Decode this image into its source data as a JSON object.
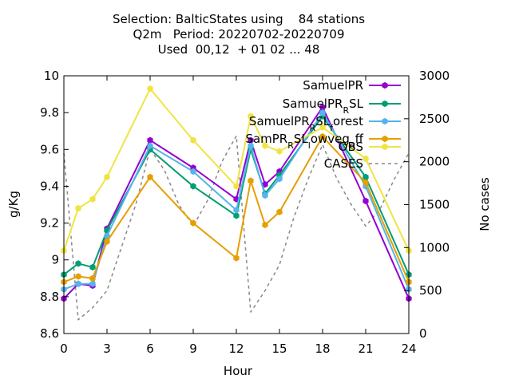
{
  "title_lines": [
    "Selection: BalticStates using    84 stations",
    "Q2m   Period: 20220702-20220709",
    "Used  00,12  + 01 02 ... 48"
  ],
  "chart_data": {
    "type": "line",
    "xlabel": "Hour",
    "ylabel": "g/Kg",
    "y2label": "No cases",
    "xlim": [
      0,
      24
    ],
    "ylim": [
      8.6,
      10.0
    ],
    "y2lim": [
      0,
      3000
    ],
    "xticks": [
      0,
      3,
      6,
      9,
      12,
      15,
      18,
      21,
      24
    ],
    "xtick_labels": [
      "0",
      "3",
      "6",
      "9",
      "12",
      "15",
      "18",
      "21",
      "24"
    ],
    "yticks": [
      8.6,
      8.8,
      9.0,
      9.2,
      9.4,
      9.6,
      9.8,
      10.0
    ],
    "ytick_labels": [
      "8.6",
      "8.8",
      "9",
      "9.2",
      "9.4",
      "9.6",
      "9.8",
      "10"
    ],
    "y2ticks": [
      0,
      500,
      1000,
      1500,
      2000,
      2500,
      3000
    ],
    "y2tick_labels": [
      "0",
      "500",
      "1000",
      "1500",
      "2000",
      "2500",
      "3000"
    ],
    "legend_position": "top-right",
    "series": [
      {
        "name": "SamuelPR",
        "color": "#9400d3",
        "x": [
          0,
          1,
          2,
          3,
          6,
          9,
          12,
          13,
          14,
          15,
          18,
          21,
          24
        ],
        "y": [
          8.79,
          8.87,
          8.86,
          9.17,
          9.65,
          9.5,
          9.33,
          9.65,
          9.41,
          9.48,
          9.83,
          9.32,
          8.79
        ]
      },
      {
        "name": "SamuelPR_R SL",
        "color": "#009e73",
        "x": [
          0,
          1,
          2,
          3,
          6,
          9,
          12,
          13,
          14,
          15,
          18,
          21,
          24
        ],
        "y": [
          8.92,
          8.98,
          8.96,
          9.16,
          9.6,
          9.4,
          9.24,
          9.6,
          9.36,
          9.46,
          9.78,
          9.45,
          8.92
        ]
      },
      {
        "name": "SamuelPR_R SL_forest",
        "color": "#56b4e9",
        "x": [
          0,
          1,
          2,
          3,
          6,
          9,
          12,
          13,
          14,
          15,
          18,
          21,
          24
        ],
        "y": [
          8.84,
          8.87,
          8.87,
          9.13,
          9.62,
          9.48,
          9.27,
          9.62,
          9.35,
          9.44,
          9.8,
          9.4,
          8.84
        ]
      },
      {
        "name": "SamPR_R SL_lowveg_off",
        "color": "#e69f00",
        "x": [
          0,
          1,
          2,
          3,
          6,
          9,
          12,
          13,
          14,
          15,
          18,
          21,
          24
        ],
        "y": [
          8.88,
          8.91,
          8.9,
          9.1,
          9.45,
          9.2,
          9.01,
          9.43,
          9.19,
          9.26,
          9.67,
          9.42,
          8.88
        ]
      },
      {
        "name": "OBS",
        "color": "#f0e442",
        "x": [
          0,
          1,
          2,
          3,
          6,
          9,
          12,
          13,
          14,
          15,
          18,
          21,
          24
        ],
        "y": [
          9.05,
          9.28,
          9.33,
          9.45,
          9.93,
          9.65,
          9.4,
          9.78,
          9.62,
          9.59,
          9.72,
          9.55,
          9.05
        ]
      },
      {
        "name": "CASES",
        "color": "#888888",
        "axis": "y2",
        "x": [
          0,
          1,
          2,
          3,
          4,
          5,
          6,
          7,
          8,
          9,
          10,
          11,
          12,
          13,
          14,
          15,
          16,
          17,
          18,
          19,
          20,
          21,
          22,
          23,
          24
        ],
        "y": [
          2100,
          160,
          300,
          500,
          1000,
          1500,
          2150,
          1900,
          1500,
          1250,
          1550,
          2000,
          2300,
          250,
          500,
          800,
          1350,
          1800,
          2200,
          1800,
          1500,
          1250,
          1450,
          1800,
          2100
        ]
      }
    ]
  },
  "legend_labels": [
    {
      "base": "SamuelPR",
      "parts": []
    },
    {
      "base": "SamuelPR",
      "parts": [
        {
          "t": "R",
          "sub": true
        },
        {
          "t": "SL",
          "sub": false
        }
      ]
    },
    {
      "base": "SamuelPR",
      "parts": [
        {
          "t": "R",
          "sub": true
        },
        {
          "t": "SL",
          "sub": false
        },
        {
          "t": "f",
          "sub": true
        },
        {
          "t": "orest",
          "sub": false
        }
      ]
    },
    {
      "base": "SamPR",
      "parts": [
        {
          "t": "R",
          "sub": true
        },
        {
          "t": "SL",
          "sub": false
        },
        {
          "t": "l",
          "sub": true
        },
        {
          "t": "owveg",
          "sub": false
        },
        {
          "t": "o",
          "sub": true
        },
        {
          "t": "ff",
          "sub": false
        }
      ]
    },
    {
      "base": "OBS",
      "parts": []
    },
    {
      "base": "CASES",
      "parts": []
    }
  ]
}
